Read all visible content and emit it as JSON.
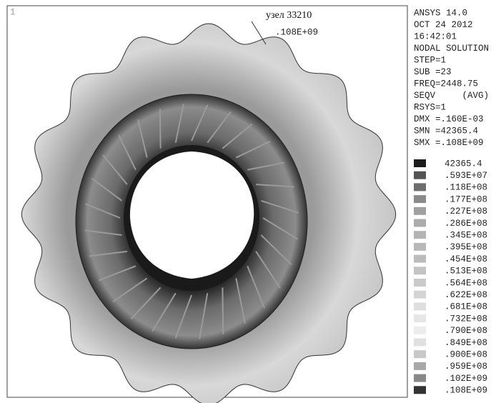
{
  "viewport": "1",
  "annotation": {
    "node": "узел 33210",
    "value": ".108E+09"
  },
  "info": [
    "ANSYS 14.0",
    "OCT 24 2012",
    "16:42:01",
    "NODAL SOLUTION",
    "STEP=1",
    "SUB =23",
    "FREQ=2448.75",
    "SEQV     (AVG)",
    "RSYS=1",
    "DMX =.160E-03",
    "SMN =42365.4",
    "SMX =.108E+09"
  ],
  "legend": [
    {
      "label": "42365.4",
      "color": "#1c1c1c"
    },
    {
      "label": ".593E+07",
      "color": "#555555"
    },
    {
      "label": ".118E+08",
      "color": "#6e6e6e"
    },
    {
      "label": ".177E+08",
      "color": "#8a8a8a"
    },
    {
      "label": ".227E+08",
      "color": "#a0a0a0"
    },
    {
      "label": ".286E+08",
      "color": "#acacac"
    },
    {
      "label": ".345E+08",
      "color": "#b4b4b4"
    },
    {
      "label": ".395E+08",
      "color": "#b8b8b8"
    },
    {
      "label": ".454E+08",
      "color": "#bcbcbc"
    },
    {
      "label": ".513E+08",
      "color": "#c4c4c4"
    },
    {
      "label": ".564E+08",
      "color": "#cacaca"
    },
    {
      "label": ".622E+08",
      "color": "#d4d4d4"
    },
    {
      "label": ".681E+08",
      "color": "#dedede"
    },
    {
      "label": ".732E+08",
      "color": "#e6e6e6"
    },
    {
      "label": ".790E+08",
      "color": "#ececec"
    },
    {
      "label": ".849E+08",
      "color": "#e0e0e0"
    },
    {
      "label": ".900E+08",
      "color": "#c8c8c8"
    },
    {
      "label": ".959E+08",
      "color": "#a8a8a8"
    },
    {
      "label": ".102E+09",
      "color": "#888888"
    },
    {
      "label": ".108E+09",
      "color": "#333333"
    }
  ]
}
